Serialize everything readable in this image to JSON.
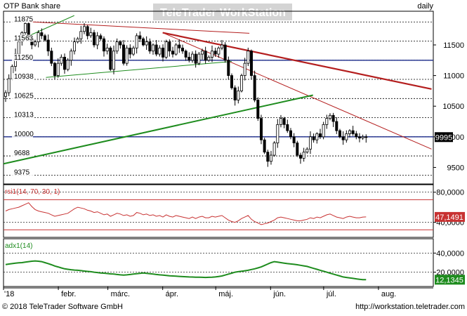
{
  "header": {
    "title": "OTP Bank share",
    "watermark_a": "TeleTrader",
    "watermark_b": "WorkStation",
    "interval": "daily"
  },
  "footer": {
    "copyright": "© 2018 TeleTrader Software GmbH",
    "url": "http://workstation.teletrader.com"
  },
  "colors": {
    "candle": "#000000",
    "hline": "#1a2a8a",
    "trend_red": "#b41e1e",
    "trend_green": "#1e8c1e",
    "rsi": "#c83232",
    "adx": "#1e8c1e",
    "grid": "#000000"
  },
  "chart_data": [
    {
      "type": "candlestick",
      "title": "OTP Bank share",
      "x_ticks": [
        "'18",
        "febr.",
        "márc.",
        "ápr.",
        "máj.",
        "jún.",
        "júl.",
        "aug."
      ],
      "y_ticks": [
        9500,
        10000,
        10500,
        11000,
        11500
      ],
      "y_tick_labels": [
        "9500",
        "10000",
        "10500",
        "11000",
        "11500"
      ],
      "ylim": [
        9230,
        12050
      ],
      "inner_levels": [
        11875,
        11563,
        11250,
        10938,
        10625,
        10313,
        10000,
        9688,
        9375
      ],
      "inner_level_labels": [
        "11875",
        "11563",
        "11250",
        "10938",
        "10625",
        "10313",
        "10000",
        "9688",
        "9375"
      ],
      "last_price": 9995,
      "last_price_label": "9995",
      "horizontal_lines": [
        11250,
        10000
      ],
      "series": [
        {
          "name": "close",
          "values": [
            10720,
            10950,
            11150,
            11350,
            11550,
            11700,
            11850,
            11600,
            11500,
            11550,
            11700,
            11650,
            11580,
            11400,
            11200,
            11000,
            11200,
            11300,
            11100,
            11250,
            11400,
            11550,
            11600,
            11720,
            11800,
            11650,
            11700,
            11500,
            11650,
            11600,
            11400,
            11450,
            11100,
            11400,
            11550,
            11500,
            11200,
            11450,
            11350,
            11450,
            11650,
            11600,
            11500,
            11550,
            11400,
            11500,
            11350,
            11450,
            11300,
            11550,
            11400,
            11350,
            11500,
            11450,
            11400,
            11300,
            11250,
            11350,
            11200,
            11350,
            11400,
            11250,
            11300,
            11400,
            11350,
            11450,
            11500,
            11250,
            11000,
            10800,
            10600,
            10750,
            11000,
            11200,
            11400,
            11000,
            10600,
            10300,
            9950,
            9750,
            9600,
            9700,
            9900,
            10200,
            10300,
            10200,
            10100,
            10000,
            9900,
            9700,
            9650,
            9750,
            9800,
            10000,
            9950,
            10050,
            10000,
            10200,
            10300,
            10350,
            10250,
            10100,
            10000,
            9950,
            10050,
            10100,
            10050,
            10000,
            9980,
            10000,
            9995
          ]
        }
      ],
      "trend_lines": [
        {
          "name": "red-major",
          "from": [
            "2018-04-01",
            11700
          ],
          "to": [
            "2018-08-31",
            10780
          ]
        },
        {
          "name": "red-thin",
          "from": [
            "2018-04-01",
            11700
          ],
          "to": [
            "2018-08-31",
            9800
          ]
        },
        {
          "name": "red-top",
          "from": [
            "2018-01-15",
            11880
          ],
          "to": [
            "2018-05-20",
            11690
          ]
        },
        {
          "name": "green-major",
          "from": [
            "2018-01-01",
            9560
          ],
          "to": [
            "2018-06-25",
            10680
          ]
        },
        {
          "name": "green-mid",
          "from": [
            "2018-01-25",
            10970
          ],
          "to": [
            "2018-05-10",
            11230
          ]
        },
        {
          "name": "green-top",
          "from": [
            "2018-01-10",
            11580
          ],
          "to": [
            "2018-02-10",
            11980
          ]
        }
      ]
    },
    {
      "type": "line",
      "title": "rsi1(14, 70, 30, 1)",
      "y_tick_labels": [
        "80,0000",
        "40,0000"
      ],
      "y_ticks": [
        80,
        40
      ],
      "ylim": [
        20,
        90
      ],
      "levels": [
        70,
        30
      ],
      "last_value_label": "47,1491",
      "series": [
        {
          "name": "rsi1",
          "values": [
            55,
            57,
            58,
            59,
            60,
            62,
            64,
            66,
            61,
            57,
            55,
            54,
            53,
            52,
            50,
            48,
            49,
            50,
            51,
            52,
            55,
            58,
            60,
            59,
            58,
            56,
            55,
            53,
            54,
            52,
            50,
            51,
            48,
            50,
            52,
            51,
            49,
            50,
            48,
            49,
            53,
            52,
            50,
            51,
            49,
            50,
            48,
            49,
            47,
            50,
            48,
            47,
            49,
            48,
            47,
            46,
            45,
            47,
            45,
            47,
            48,
            46,
            46,
            48,
            47,
            48,
            49,
            46,
            43,
            41,
            40,
            42,
            45,
            47,
            49,
            44,
            41,
            39,
            37,
            38,
            39,
            41,
            43,
            46,
            47,
            46,
            45,
            44,
            43,
            42,
            42,
            43,
            44,
            46,
            45,
            47,
            46,
            48,
            50,
            51,
            49,
            47,
            46,
            45,
            47,
            48,
            47,
            46,
            46,
            47,
            47.1491
          ]
        }
      ]
    },
    {
      "type": "line",
      "title": "adx1(14)",
      "y_tick_labels": [
        "40,0000",
        "20,0000"
      ],
      "y_ticks": [
        40,
        20
      ],
      "ylim": [
        5,
        55
      ],
      "last_value_label": "12,1345",
      "series": [
        {
          "name": "adx1",
          "values": [
            28,
            28.5,
            29,
            29.5,
            29.8,
            30,
            30.5,
            31,
            31.5,
            31.8,
            31.5,
            31,
            30,
            29,
            27.8,
            26.5,
            25.5,
            24.5,
            23.5,
            23,
            22.6,
            22.2,
            22,
            21.6,
            21.2,
            20.8,
            20.5,
            20,
            19.6,
            19.2,
            19,
            18.6,
            18.2,
            18,
            17.6,
            17.2,
            17,
            17.2,
            17.6,
            18,
            18.4,
            18.8,
            19.2,
            18.8,
            18.4,
            18,
            17.6,
            17.2,
            17,
            16.6,
            16.2,
            16,
            15.8,
            15.6,
            15.4,
            15.2,
            15,
            14.9,
            14.8,
            14.7,
            14.6,
            14.5,
            14.6,
            14.8,
            15,
            15.5,
            16,
            17,
            18,
            19,
            20,
            20.5,
            21,
            21.5,
            22,
            22.8,
            23.5,
            24.5,
            25.5,
            27,
            28.5,
            30,
            31,
            30.5,
            30,
            29.5,
            29,
            28.6,
            28.2,
            27.8,
            27.2,
            26.6,
            26,
            25,
            24,
            23,
            22,
            21,
            20,
            19,
            18,
            17,
            16,
            15,
            14.5,
            14,
            13.5,
            13,
            12.5,
            12.2,
            12.1345
          ]
        }
      ]
    }
  ]
}
